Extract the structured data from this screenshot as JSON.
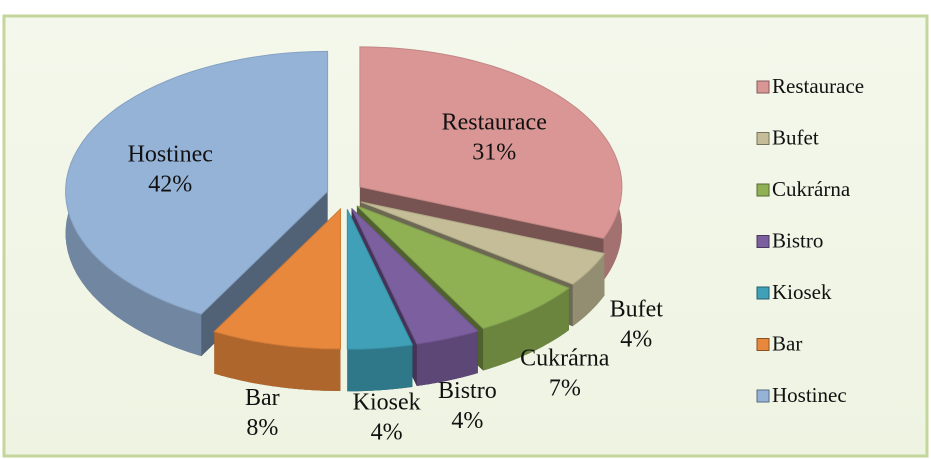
{
  "chart_data": {
    "type": "pie",
    "categories": [
      "Restaurace",
      "Bufet",
      "Cukrárna",
      "Bistro",
      "Kiosek",
      "Bar",
      "Hostinec"
    ],
    "values": [
      31,
      4,
      7,
      4,
      4,
      8,
      42
    ],
    "value_labels": [
      "31%",
      "4%",
      "7%",
      "4%",
      "4%",
      "8%",
      "42%"
    ],
    "colors": [
      "#d99694",
      "#c4bd97",
      "#8fb154",
      "#7b5f9e",
      "#3fa0b8",
      "#e8883c",
      "#95b3d7"
    ],
    "legend": "right"
  }
}
